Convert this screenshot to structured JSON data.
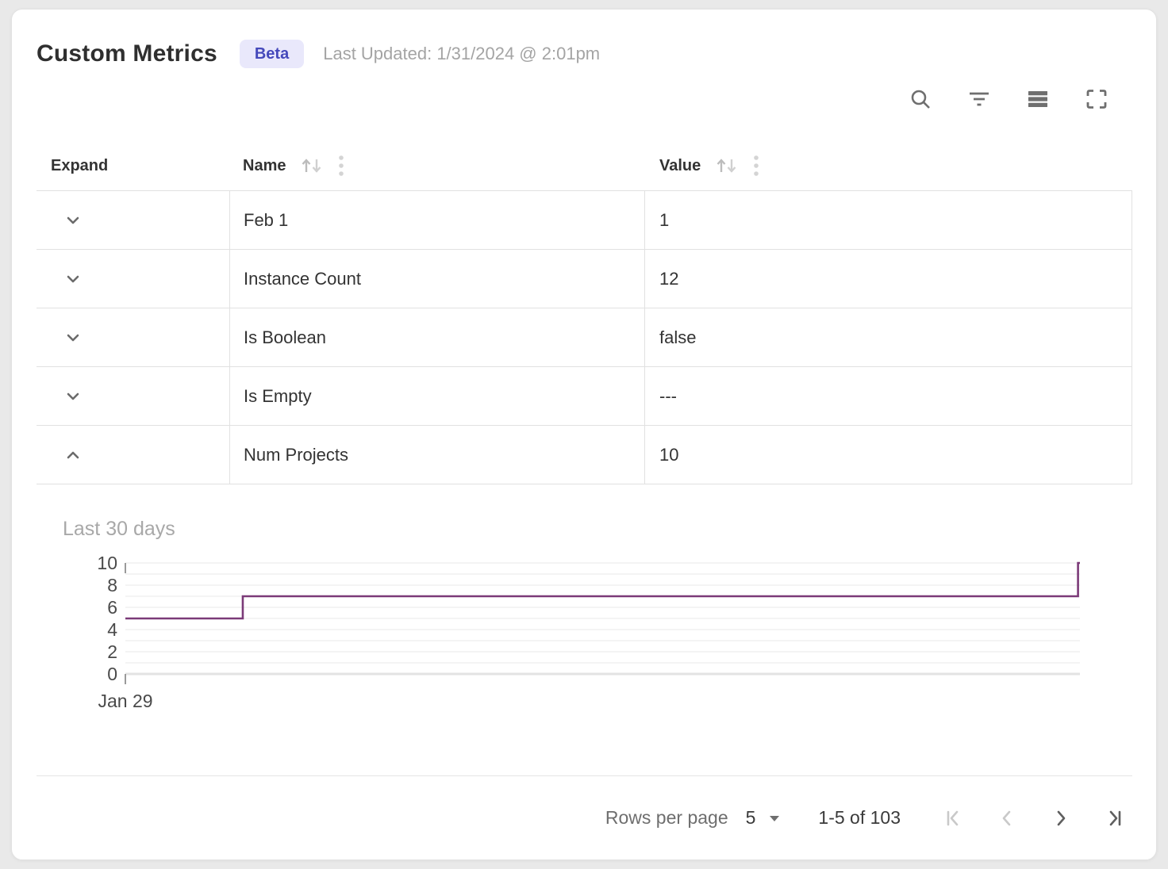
{
  "theme": {
    "badge_bg": "#e9e8fb",
    "badge_text": "#4549bb",
    "line_color": "#7b3a78"
  },
  "header": {
    "title": "Custom Metrics",
    "badge": "Beta",
    "last_updated": "Last Updated: 1/31/2024 @ 2:01pm"
  },
  "toolbar": {
    "icons": [
      "search",
      "filter",
      "density",
      "fullscreen"
    ]
  },
  "table": {
    "columns": [
      {
        "label": "Expand",
        "sortable": false
      },
      {
        "label": "Name",
        "sortable": true
      },
      {
        "label": "Value",
        "sortable": true
      }
    ],
    "rows": [
      {
        "name": "Feb 1",
        "value": "1",
        "expanded": false
      },
      {
        "name": "Instance Count",
        "value": "12",
        "expanded": false
      },
      {
        "name": "Is Boolean",
        "value": "false",
        "expanded": false
      },
      {
        "name": "Is Empty",
        "value": "---",
        "expanded": false
      },
      {
        "name": "Num Projects",
        "value": "10",
        "expanded": true
      }
    ]
  },
  "chart_data": {
    "type": "line",
    "title": "Last 30 days",
    "series_for_row": "Num Projects",
    "style": "step-after",
    "ylim": [
      0,
      10
    ],
    "yticks": [
      0,
      2,
      4,
      6,
      8,
      10
    ],
    "grid_minor_step": 1,
    "x_axis": {
      "tick_labels": [
        "Jan 29"
      ],
      "range": "last 30 days"
    },
    "series": [
      {
        "name": "Num Projects",
        "color": "#7b3a78",
        "points": [
          {
            "x": 0,
            "y": 5
          },
          {
            "x": 0.123,
            "y": 5
          },
          {
            "x": 0.123,
            "y": 7
          },
          {
            "x": 0.998,
            "y": 7
          },
          {
            "x": 0.998,
            "y": 10
          },
          {
            "x": 1,
            "y": 10
          }
        ]
      }
    ],
    "colors": {
      "grid": "#f1f1f1",
      "axis": "#e3e3e3",
      "tick": "#9a9a9a",
      "label": "#4a4a4a"
    }
  },
  "pagination": {
    "rows_per_page_label": "Rows per page",
    "page_size": "5",
    "range_label": "1-5 of 103",
    "buttons": [
      {
        "name": "first-page",
        "enabled": false
      },
      {
        "name": "previous-page",
        "enabled": false
      },
      {
        "name": "next-page",
        "enabled": true
      },
      {
        "name": "last-page",
        "enabled": true
      }
    ]
  }
}
